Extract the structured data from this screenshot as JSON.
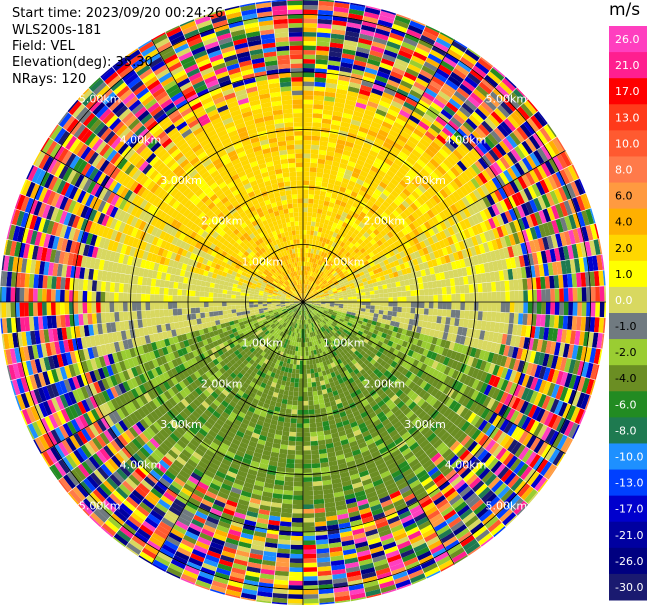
{
  "header": {
    "start_time": "Start time: 2023/09/20 00:24:26",
    "station": "WLS200s-181",
    "field": "Field: VEL",
    "elevation": "Elevation(deg): 35.30",
    "nrays": "NRays: 120"
  },
  "colorbar": {
    "unit": "m/s",
    "ticks": [
      "26.0",
      "21.0",
      "17.0",
      "13.0",
      "10.0",
      "8.0",
      "6.0",
      "4.0",
      "2.0",
      "1.0",
      "0.0",
      "-1.0",
      "-2.0",
      "-4.0",
      "-6.0",
      "-8.0",
      "-10.0",
      "-13.0",
      "-17.0",
      "-21.0",
      "-26.0",
      "-30.0"
    ],
    "colors": [
      "#ff3fbf",
      "#ff1f8f",
      "#ff0000",
      "#ff3a1a",
      "#ff5a30",
      "#ff7a4a",
      "#ff9a40",
      "#ffb000",
      "#ffd700",
      "#ffff00",
      "#d8d860",
      "#707a80",
      "#9acd32",
      "#6b8e23",
      "#228b22",
      "#1e7a50",
      "#1e90ff",
      "#0040ff",
      "#0000cd",
      "#0000a0",
      "#000080",
      "#1a1a70"
    ]
  },
  "chart_data": {
    "type": "ppi",
    "field": "VEL",
    "units": "m/s",
    "n_rays": 120,
    "elevation_deg": 35.3,
    "range_ring_labels": [
      "1.00km",
      "2.00km",
      "3.00km",
      "4.00km",
      "5.00km"
    ],
    "structure": {
      "toward_north_half": "positive velocities (yellow, 1 to 6 m/s)",
      "toward_south_half": "negative velocities (green, -1 to -6 m/s)",
      "east_west_band": "near-zero (gray, 0.0 m/s)",
      "beyond_4km": "noise (mixed colors across full scale)"
    }
  }
}
